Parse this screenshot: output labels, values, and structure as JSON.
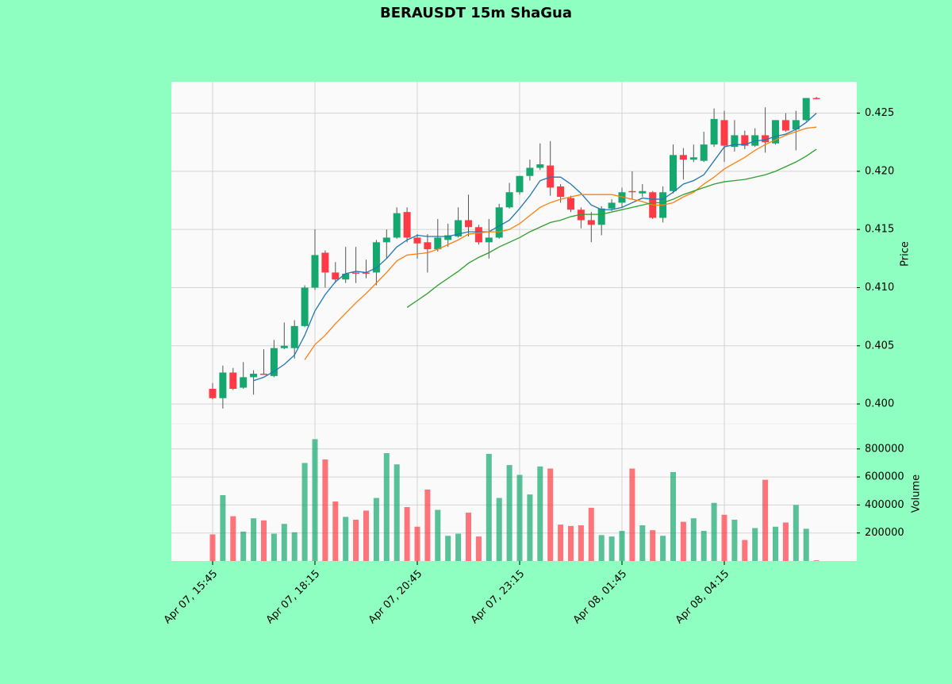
{
  "chart_data": {
    "type": "candlestick",
    "title": "BERAUSDT 15m ShaGua",
    "categories": [
      "Apr 07, 15:45",
      null,
      null,
      null,
      null,
      null,
      null,
      null,
      null,
      null,
      "Apr 07, 18:15",
      null,
      null,
      null,
      null,
      null,
      null,
      null,
      null,
      null,
      "Apr 07, 20:45",
      null,
      null,
      null,
      null,
      null,
      null,
      null,
      null,
      null,
      "Apr 07, 23:15",
      null,
      null,
      null,
      null,
      null,
      null,
      null,
      null,
      null,
      "Apr 08, 01:45",
      null,
      null,
      null,
      null,
      null,
      null,
      null,
      null,
      null,
      "Apr 08, 04:15",
      null,
      null,
      null,
      null,
      null,
      null,
      null,
      null,
      null
    ],
    "open": [
      0.4013,
      0.4005,
      0.4027,
      0.4014,
      0.4023,
      0.4026,
      0.4024,
      0.4048,
      0.4048,
      0.4067,
      0.41,
      0.413,
      0.4113,
      0.4107,
      0.4113,
      0.4113,
      0.4113,
      0.4139,
      0.4143,
      0.4165,
      0.4143,
      0.4139,
      0.4133,
      0.4141,
      0.4144,
      0.4158,
      0.4152,
      0.4139,
      0.4143,
      0.4169,
      0.4182,
      0.4196,
      0.4203,
      0.4205,
      0.4187,
      0.4177,
      0.4167,
      0.4158,
      0.4154,
      0.4168,
      0.4173,
      0.4183,
      0.4181,
      0.4182,
      0.416,
      0.4183,
      0.4214,
      0.421,
      0.4209,
      0.4223,
      0.4244,
      0.4221,
      0.4231,
      0.4222,
      0.4231,
      0.4224,
      0.4244,
      0.4236,
      0.4244,
      0.4263
    ],
    "high": [
      0.4018,
      0.4033,
      0.4031,
      0.4036,
      0.4029,
      0.4047,
      0.4055,
      0.407,
      0.4072,
      0.4102,
      0.415,
      0.4132,
      0.4122,
      0.4135,
      0.4135,
      0.4124,
      0.4141,
      0.415,
      0.4169,
      0.4169,
      0.4146,
      0.4146,
      0.4159,
      0.4155,
      0.4169,
      0.418,
      0.4154,
      0.4159,
      0.4172,
      0.419,
      0.4196,
      0.421,
      0.4224,
      0.4226,
      0.4189,
      0.4179,
      0.4169,
      0.4165,
      0.417,
      0.4176,
      0.4186,
      0.42,
      0.4189,
      0.4183,
      0.4187,
      0.4223,
      0.422,
      0.4223,
      0.4234,
      0.4254,
      0.4252,
      0.4244,
      0.4235,
      0.4237,
      0.4255,
      0.4244,
      0.425,
      0.4252,
      0.4263,
      0.4264
    ],
    "low": [
      0.4004,
      0.3996,
      0.4012,
      0.4013,
      0.4008,
      0.4025,
      0.4023,
      0.4047,
      0.4039,
      0.4066,
      0.4098,
      0.41,
      0.4104,
      0.4104,
      0.4104,
      0.4108,
      0.4102,
      0.4125,
      0.4142,
      0.4139,
      0.4125,
      0.4113,
      0.4131,
      0.4135,
      0.4143,
      0.4144,
      0.4137,
      0.4125,
      0.4142,
      0.4168,
      0.418,
      0.4192,
      0.4201,
      0.4179,
      0.4173,
      0.4165,
      0.4151,
      0.4139,
      0.4145,
      0.4166,
      0.4169,
      0.4176,
      0.4178,
      0.4159,
      0.4156,
      0.4181,
      0.4193,
      0.4208,
      0.4208,
      0.4221,
      0.4208,
      0.4217,
      0.4219,
      0.4221,
      0.4216,
      0.4223,
      0.4234,
      0.4218,
      0.4243,
      0.4262
    ],
    "close": [
      0.4005,
      0.4027,
      0.4013,
      0.4023,
      0.4026,
      0.4025,
      0.4048,
      0.405,
      0.4067,
      0.41,
      0.4128,
      0.4113,
      0.4107,
      0.4112,
      0.4112,
      0.4112,
      0.4139,
      0.4143,
      0.4164,
      0.4143,
      0.4138,
      0.4133,
      0.4143,
      0.4145,
      0.4158,
      0.4152,
      0.4139,
      0.4143,
      0.4169,
      0.4182,
      0.4196,
      0.4203,
      0.4206,
      0.4186,
      0.4178,
      0.4167,
      0.4158,
      0.4154,
      0.4168,
      0.4173,
      0.4182,
      0.4182,
      0.4183,
      0.416,
      0.4182,
      0.4214,
      0.421,
      0.4212,
      0.4223,
      0.4245,
      0.4222,
      0.4231,
      0.4222,
      0.4231,
      0.4225,
      0.4244,
      0.4235,
      0.4244,
      0.4263,
      0.4262
    ],
    "volume": [
      190000,
      470000,
      320000,
      210000,
      305000,
      290000,
      195000,
      265000,
      205000,
      700000,
      870000,
      725000,
      425000,
      315000,
      295000,
      360000,
      450000,
      770000,
      690000,
      385000,
      245000,
      510000,
      365000,
      180000,
      195000,
      345000,
      175000,
      765000,
      450000,
      685000,
      615000,
      475000,
      675000,
      660000,
      260000,
      250000,
      255000,
      380000,
      185000,
      175000,
      215000,
      660000,
      255000,
      220000,
      180000,
      635000,
      280000,
      305000,
      215000,
      415000,
      330000,
      295000,
      150000,
      235000,
      580000,
      245000,
      275000,
      400000,
      230000,
      5000
    ],
    "up_color": "#14a86e",
    "down_color": "#ff3a44",
    "ma": [
      {
        "color": "#1f77b4",
        "values": [
          null,
          null,
          null,
          null,
          0.402,
          0.4023,
          0.4028,
          0.4034,
          0.4042,
          0.4059,
          0.408,
          0.4094,
          0.4105,
          0.4112,
          0.4114,
          0.4113,
          0.4117,
          0.4125,
          0.4135,
          0.4141,
          0.4145,
          0.4144,
          0.4144,
          0.4144,
          0.4146,
          0.4148,
          0.4148,
          0.4148,
          0.4153,
          0.4158,
          0.4168,
          0.4179,
          0.4192,
          0.4195,
          0.4195,
          0.4189,
          0.4181,
          0.4171,
          0.4167,
          0.4167,
          0.4169,
          0.4173,
          0.4177,
          0.4176,
          0.4176,
          0.4182,
          0.4189,
          0.4192,
          0.4197,
          0.4209,
          0.4221,
          0.4223,
          0.4223,
          0.4226,
          0.4227,
          0.423,
          0.4232,
          0.4236,
          0.4242,
          0.425
        ]
      },
      {
        "color": "#ff7f0e",
        "values": [
          null,
          null,
          null,
          null,
          null,
          null,
          null,
          null,
          null,
          0.4038,
          0.4051,
          0.4059,
          0.4069,
          0.4078,
          0.4087,
          0.4095,
          0.4104,
          0.4113,
          0.4123,
          0.4128,
          0.4129,
          0.413,
          0.4133,
          0.4137,
          0.4141,
          0.4146,
          0.4147,
          0.4148,
          0.4148,
          0.415,
          0.4155,
          0.4162,
          0.4169,
          0.4173,
          0.4176,
          0.4178,
          0.418,
          0.418,
          0.418,
          0.418,
          0.4178,
          0.4176,
          0.4174,
          0.4171,
          0.4171,
          0.4173,
          0.4178,
          0.4182,
          0.4189,
          0.4195,
          0.4202,
          0.4207,
          0.4212,
          0.4218,
          0.4223,
          0.4227,
          0.4231,
          0.4234,
          0.4237,
          0.4238
        ]
      },
      {
        "color": "#2ca02c",
        "values": [
          null,
          null,
          null,
          null,
          null,
          null,
          null,
          null,
          null,
          null,
          null,
          null,
          null,
          null,
          null,
          null,
          null,
          null,
          null,
          0.4083,
          0.4089,
          0.4095,
          0.4102,
          0.4108,
          0.4114,
          0.4121,
          0.4126,
          0.413,
          0.4135,
          0.4139,
          0.4143,
          0.4148,
          0.4152,
          0.4156,
          0.4158,
          0.4161,
          0.4163,
          0.4163,
          0.4163,
          0.4165,
          0.4167,
          0.4169,
          0.4171,
          0.4173,
          0.4173,
          0.4176,
          0.418,
          0.4183,
          0.4186,
          0.4189,
          0.4191,
          0.4192,
          0.4193,
          0.4195,
          0.4197,
          0.42,
          0.4204,
          0.4208,
          0.4213,
          0.4219
        ]
      }
    ],
    "y_label": "Price",
    "ylim": [
      0.3983,
      0.4277
    ],
    "yticks": [
      {
        "value": 0.4,
        "label": "0.400"
      },
      0.405,
      {
        "value": 0.41,
        "label": "0.410"
      },
      0.415,
      {
        "value": 0.42,
        "label": "0.420"
      },
      0.425
    ],
    "volume_label": "Volume",
    "volume_ylim": [
      0,
      980000
    ],
    "volume_yticks": [
      200000,
      400000,
      600000,
      800000
    ],
    "grid": true
  }
}
